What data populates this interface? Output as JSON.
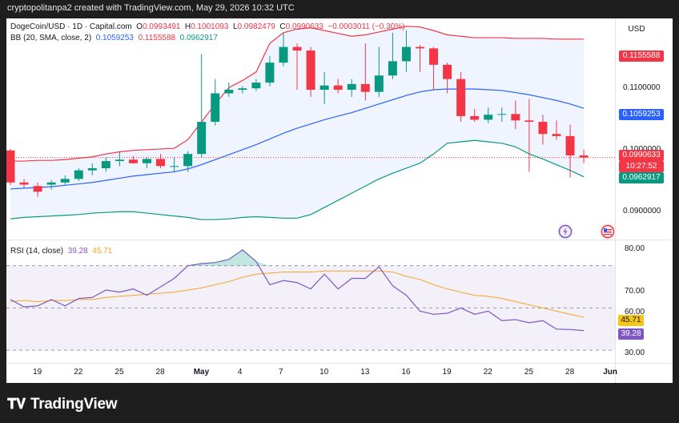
{
  "caption": "cryptopolitanpa2 created with TradingView.com, May 29, 2026 10:32 UTC",
  "currency": "USD",
  "legend": {
    "symbol": "DogeCoin/USD · 1D · Capital.com",
    "o_label": "O",
    "o_value": "0.0993491",
    "h_label": "H",
    "h_value": "0.1001093",
    "l_label": "L",
    "l_value": "0.0982479",
    "c_label": "C",
    "c_value": "0.0990633",
    "change": "−0.0003011 (−0.30%)",
    "bb_label": "BB (20, SMA, close, 2)",
    "bb_basis": "0.1059253",
    "bb_upper": "0.1155588",
    "bb_lower": "0.0962917",
    "rsi_label": "RSI (14, close)",
    "rsi_value": "39.28",
    "rsi_ma": "45.71"
  },
  "price_axis_ticks": [
    "0.1100000",
    "0.1000000",
    "0.0900000"
  ],
  "price_tags": {
    "upper": "0.1155588",
    "basis": "0.1059253",
    "close": "0.0990633",
    "countdown": "10:27:52",
    "lower": "0.0962917"
  },
  "rsi_axis_ticks": [
    "80.00",
    "70.00",
    "60.00",
    "50.00",
    "30.00"
  ],
  "rsi_tags": {
    "ma": "45.71",
    "rsi": "39.28"
  },
  "x_axis_ticks": [
    "19",
    "22",
    "25",
    "28",
    "May",
    "4",
    "7",
    "10",
    "13",
    "16",
    "19",
    "22",
    "25",
    "28",
    "Jun"
  ],
  "footer": {
    "brand": "TradingView"
  },
  "colors": {
    "up": "#089981",
    "down": "#f23645",
    "bb_upper": "#f23645",
    "bb_basis": "#2962ff",
    "bb_lower": "#089981",
    "rsi": "#7e57c2",
    "rsi_ma": "#f5a623",
    "close_tag": "#f23645"
  },
  "chart_data": [
    {
      "type": "candlestick",
      "title": "DogeCoin/USD · 1D · Capital.com",
      "x": [
        "Apr 17",
        "Apr 18",
        "Apr 19",
        "Apr 20",
        "Apr 21",
        "Apr 22",
        "Apr 23",
        "Apr 24",
        "Apr 25",
        "Apr 26",
        "Apr 27",
        "Apr 28",
        "Apr 29",
        "Apr 30",
        "May 1",
        "May 2",
        "May 3",
        "May 4",
        "May 5",
        "May 6",
        "May 7",
        "May 8",
        "May 9",
        "May 10",
        "May 11",
        "May 12",
        "May 13",
        "May 14",
        "May 15",
        "May 16",
        "May 17",
        "May 18",
        "May 19",
        "May 20",
        "May 21",
        "May 22",
        "May 23",
        "May 24",
        "May 25",
        "May 26",
        "May 27",
        "May 28",
        "May 29"
      ],
      "open": [
        0.1,
        0.0955,
        0.095,
        0.0952,
        0.0955,
        0.096,
        0.0972,
        0.0975,
        0.0985,
        0.0987,
        0.0982,
        0.0988,
        0.0978,
        0.0978,
        0.0995,
        0.104,
        0.108,
        0.1085,
        0.1087,
        0.1095,
        0.1123,
        0.1145,
        0.114,
        0.1085,
        0.1091,
        0.1085,
        0.1093,
        0.1082,
        0.1105,
        0.1125,
        0.1145,
        0.1143,
        0.112,
        0.11,
        0.1048,
        0.1043,
        0.105,
        0.1051,
        0.1042,
        0.104,
        0.1023,
        0.102,
        0.0993
      ],
      "high": [
        0.1002,
        0.096,
        0.0955,
        0.0958,
        0.0965,
        0.0975,
        0.0982,
        0.099,
        0.0998,
        0.0992,
        0.099,
        0.0995,
        0.099,
        0.0999,
        0.1135,
        0.11,
        0.1095,
        0.109,
        0.11,
        0.1132,
        0.1165,
        0.115,
        0.1145,
        0.111,
        0.11,
        0.11,
        0.115,
        0.1145,
        0.1165,
        0.1168,
        0.1148,
        0.1145,
        0.1123,
        0.111,
        0.1058,
        0.106,
        0.106,
        0.107,
        0.1072,
        0.105,
        0.1042,
        0.1036,
        0.1001
      ],
      "low": [
        0.0951,
        0.0948,
        0.0935,
        0.0945,
        0.0952,
        0.0957,
        0.0965,
        0.097,
        0.0978,
        0.0981,
        0.0975,
        0.0975,
        0.0969,
        0.097,
        0.099,
        0.1035,
        0.1075,
        0.108,
        0.1083,
        0.109,
        0.1118,
        0.1085,
        0.1075,
        0.1065,
        0.108,
        0.1075,
        0.107,
        0.1075,
        0.11,
        0.111,
        0.111,
        0.1085,
        0.108,
        0.104,
        0.104,
        0.1038,
        0.104,
        0.103,
        0.097,
        0.1008,
        0.1015,
        0.0962,
        0.0982
      ],
      "close": [
        0.0955,
        0.0952,
        0.0942,
        0.0955,
        0.096,
        0.0972,
        0.0975,
        0.0985,
        0.0987,
        0.0982,
        0.0988,
        0.0978,
        0.0978,
        0.0995,
        0.104,
        0.108,
        0.1085,
        0.1087,
        0.1095,
        0.1123,
        0.1145,
        0.114,
        0.1085,
        0.1091,
        0.1085,
        0.1093,
        0.1082,
        0.1105,
        0.1125,
        0.1145,
        0.1143,
        0.112,
        0.11,
        0.1048,
        0.1043,
        0.105,
        0.1051,
        0.1042,
        0.104,
        0.1023,
        0.102,
        0.0993,
        0.099
      ],
      "series": [
        {
          "name": "Upper",
          "values": [
            0.0985,
            0.0985,
            0.0986,
            0.0986,
            0.0987,
            0.0989,
            0.0991,
            0.0995,
            0.0998,
            0.1,
            0.1001,
            0.1002,
            0.1003,
            0.1015,
            0.104,
            0.1065,
            0.1088,
            0.1098,
            0.111,
            0.115,
            0.1165,
            0.117,
            0.1172,
            0.1168,
            0.1164,
            0.116,
            0.1162,
            0.1166,
            0.117,
            0.1174,
            0.1173,
            0.1168,
            0.1162,
            0.116,
            0.1158,
            0.1158,
            0.1158,
            0.1157,
            0.1157,
            0.1157,
            0.1156,
            0.1156,
            0.1156
          ]
        },
        {
          "name": "Basis",
          "values": [
            0.0946,
            0.0947,
            0.0948,
            0.0949,
            0.0951,
            0.0953,
            0.0955,
            0.0958,
            0.0961,
            0.0964,
            0.0966,
            0.0968,
            0.097,
            0.0974,
            0.098,
            0.0987,
            0.0994,
            0.1001,
            0.1008,
            0.1016,
            0.1024,
            0.1031,
            0.1037,
            0.1043,
            0.1048,
            0.1053,
            0.1059,
            0.1065,
            0.1071,
            0.1077,
            0.1082,
            0.1085,
            0.1086,
            0.1086,
            0.1086,
            0.1085,
            0.1084,
            0.1081,
            0.1078,
            0.1074,
            0.107,
            0.1065,
            0.1059
          ]
        },
        {
          "name": "Lower",
          "values": [
            0.0904,
            0.0906,
            0.0907,
            0.0908,
            0.0909,
            0.091,
            0.0912,
            0.0913,
            0.0914,
            0.0914,
            0.0912,
            0.091,
            0.0908,
            0.0906,
            0.0903,
            0.0903,
            0.0904,
            0.0906,
            0.0907,
            0.0906,
            0.0905,
            0.0905,
            0.091,
            0.092,
            0.093,
            0.094,
            0.095,
            0.096,
            0.0968,
            0.0975,
            0.0982,
            0.0995,
            0.101,
            0.1012,
            0.1014,
            0.1012,
            0.101,
            0.1005,
            0.0995,
            0.0988,
            0.098,
            0.0972,
            0.0963
          ]
        }
      ],
      "ylim": [
        0.0875,
        0.1185
      ]
    },
    {
      "type": "line",
      "title": "RSI (14, close)",
      "x": [
        "Apr 17",
        "Apr 18",
        "Apr 19",
        "Apr 20",
        "Apr 21",
        "Apr 22",
        "Apr 23",
        "Apr 24",
        "Apr 25",
        "Apr 26",
        "Apr 27",
        "Apr 28",
        "Apr 29",
        "Apr 30",
        "May 1",
        "May 2",
        "May 3",
        "May 4",
        "May 5",
        "May 6",
        "May 7",
        "May 8",
        "May 9",
        "May 10",
        "May 11",
        "May 12",
        "May 13",
        "May 14",
        "May 15",
        "May 16",
        "May 17",
        "May 18",
        "May 19",
        "May 20",
        "May 21",
        "May 22",
        "May 23",
        "May 24",
        "May 25",
        "May 26",
        "May 27",
        "May 28",
        "May 29"
      ],
      "series": [
        {
          "name": "RSI",
          "values": [
            54.0,
            50.5,
            51.0,
            54.0,
            51.0,
            54.5,
            55.0,
            58.5,
            57.5,
            59.0,
            56.0,
            60.0,
            64.0,
            70.0,
            71.0,
            71.5,
            73.0,
            77.5,
            72.0,
            61.0,
            63.0,
            62.0,
            59.0,
            66.0,
            59.0,
            64.0,
            64.0,
            69.5,
            60.5,
            56.0,
            48.5,
            47.0,
            47.5,
            50.0,
            47.0,
            48.5,
            44.0,
            44.5,
            43.0,
            44.0,
            40.0,
            39.8,
            39.3
          ]
        },
        {
          "name": "MA",
          "values": [
            53.0,
            53.5,
            53.0,
            53.5,
            53.5,
            54.0,
            54.0,
            55.0,
            55.5,
            56.0,
            56.5,
            57.0,
            57.5,
            58.5,
            59.5,
            61.0,
            62.5,
            64.5,
            66.0,
            66.5,
            67.0,
            67.0,
            67.0,
            67.5,
            67.5,
            67.5,
            67.5,
            67.5,
            67.0,
            65.0,
            63.5,
            61.0,
            59.0,
            57.5,
            56.0,
            55.5,
            54.5,
            53.0,
            51.5,
            50.0,
            48.5,
            47.0,
            45.7
          ]
        }
      ],
      "ylim": [
        24.0,
        82.0
      ]
    }
  ]
}
